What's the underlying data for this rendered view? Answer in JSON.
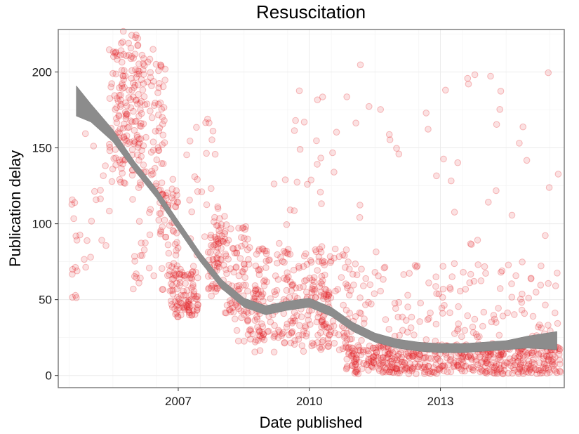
{
  "chart_data": {
    "type": "scatter",
    "title": "Resuscitation",
    "xlabel": "Date published",
    "ylabel": "Publication delay",
    "x_ticks": [
      "2007",
      "2010",
      "2013"
    ],
    "y_ticks": [
      "0",
      "50",
      "100",
      "150",
      "200"
    ],
    "xlim": [
      "2004-10-01",
      "2016-05-01"
    ],
    "ylim": [
      -8,
      228
    ],
    "grid": true,
    "colors": {
      "points": "#e31a1c",
      "smooth_band": "#8c8c8c",
      "panel_border": "#7f7f7f",
      "grid": "#ebebeb"
    },
    "series": [
      {
        "type": "scatter",
        "point_clusters": [
          {
            "x": [
              "2005-01-15",
              "2005-04-01"
            ],
            "y": [
              48,
              116
            ],
            "count": 14
          },
          {
            "x": [
              "2005-05-01",
              "2005-08-01"
            ],
            "y": [
              68,
              164
            ],
            "count": 8
          },
          {
            "x": [
              "2005-08-01",
              "2006-01-01"
            ],
            "y": [
              85,
              145
            ],
            "count": 8
          },
          {
            "x": [
              "2005-12-01",
              "2006-04-15"
            ],
            "y": [
              125,
              215
            ],
            "count": 60
          },
          {
            "x": [
              "2006-03-01",
              "2006-08-15"
            ],
            "y": [
              140,
              227
            ],
            "count": 70
          },
          {
            "x": [
              "2006-06-01",
              "2006-12-31"
            ],
            "y": [
              120,
              215
            ],
            "count": 80
          },
          {
            "x": [
              "2006-06-01",
              "2006-12-31"
            ],
            "y": [
              48,
              120
            ],
            "count": 20
          },
          {
            "x": [
              "2007-01-01",
              "2007-03-15"
            ],
            "y": [
              98,
              210
            ],
            "count": 40
          },
          {
            "x": [
              "2007-02-01",
              "2007-06-30"
            ],
            "y": [
              55,
              130
            ],
            "count": 55
          },
          {
            "x": [
              "2007-05-01",
              "2007-12-15"
            ],
            "y": [
              38,
              70
            ],
            "count": 95
          },
          {
            "x": [
              "2007-09-01",
              "2008-06-15"
            ],
            "y": [
              45,
              170
            ],
            "count": 35
          },
          {
            "x": [
              "2008-03-01",
              "2008-08-15"
            ],
            "y": [
              55,
              105
            ],
            "count": 65
          },
          {
            "x": [
              "2008-07-01",
              "2009-03-01"
            ],
            "y": [
              40,
              100
            ],
            "count": 55
          },
          {
            "x": [
              "2008-09-01",
              "2009-06-15"
            ],
            "y": [
              22,
              60
            ],
            "count": 60
          },
          {
            "x": [
              "2009-04-01",
              "2010-12-31"
            ],
            "y": [
              15,
              85
            ],
            "count": 220
          },
          {
            "x": [
              "2009-09-01",
              "2011-03-01"
            ],
            "y": [
              75,
              190
            ],
            "count": 25
          },
          {
            "x": [
              "2010-09-01",
              "2011-06-15"
            ],
            "y": [
              15,
              85
            ],
            "count": 70
          },
          {
            "x": [
              "2011-05-01",
              "2016-03-31"
            ],
            "y": [
              1,
              20
            ],
            "count": 520
          },
          {
            "x": [
              "2011-05-01",
              "2016-03-31"
            ],
            "y": [
              15,
              75
            ],
            "count": 170
          },
          {
            "x": [
              "2011-05-01",
              "2016-03-31"
            ],
            "y": [
              75,
              205
            ],
            "count": 40
          }
        ]
      },
      {
        "type": "smooth",
        "x": [
          "2005-03-01",
          "2005-07-01",
          "2006-01-01",
          "2006-07-01",
          "2007-01-01",
          "2007-07-01",
          "2008-01-01",
          "2008-07-01",
          "2009-01-01",
          "2009-07-01",
          "2010-01-01",
          "2010-07-01",
          "2011-01-01",
          "2011-07-01",
          "2012-01-01",
          "2012-07-01",
          "2013-01-01",
          "2013-07-01",
          "2014-01-01",
          "2014-07-01",
          "2015-01-01",
          "2015-07-01",
          "2016-03-01"
        ],
        "y": [
          181,
          173,
          158,
          138,
          120,
          99,
          78,
          60,
          48,
          43,
          46,
          48,
          42,
          32,
          25,
          21,
          19,
          18,
          18,
          19,
          20,
          22,
          23
        ],
        "band_halfwidth": [
          10,
          6,
          4,
          3,
          3,
          3,
          3,
          3,
          3,
          3,
          3,
          3,
          3,
          3,
          3,
          3,
          3,
          3,
          3,
          3,
          3,
          4,
          6
        ]
      }
    ]
  }
}
